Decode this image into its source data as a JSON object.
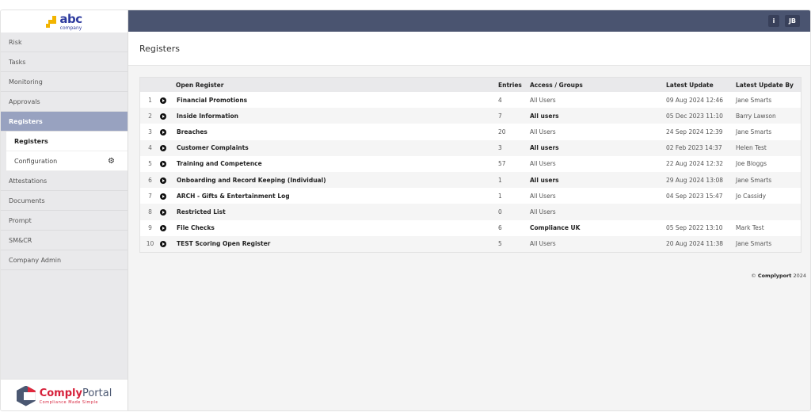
{
  "brand": {
    "logo_text": "abc",
    "logo_sub": "company",
    "footer_logo": "ComplyPortal",
    "footer_tagline": "Compliance Made Simple"
  },
  "sidebar": {
    "items": [
      {
        "label": "Risk"
      },
      {
        "label": "Tasks"
      },
      {
        "label": "Monitoring"
      },
      {
        "label": "Approvals"
      },
      {
        "label": "Registers"
      },
      {
        "label": "Attestations"
      },
      {
        "label": "Documents"
      },
      {
        "label": "Prompt"
      },
      {
        "label": "SM&CR"
      },
      {
        "label": "Company Admin"
      }
    ],
    "sub_items": [
      {
        "label": "Registers"
      },
      {
        "label": "Configuration",
        "icon": "gear-icon"
      }
    ]
  },
  "topbar": {
    "info": "i",
    "user_initials": "JB"
  },
  "page": {
    "title": "Registers"
  },
  "table": {
    "headers": [
      "Open Register",
      "Entries",
      "Access / Groups",
      "Latest Update",
      "Latest Update By"
    ],
    "rows": [
      {
        "n": "1",
        "name": "Financial Promotions",
        "entries": "4",
        "access": "All Users",
        "access_bold": false,
        "update": "09 Aug 2024 12:46",
        "by": "Jane Smarts"
      },
      {
        "n": "2",
        "name": "Inside Information",
        "entries": "7",
        "access": "All users",
        "access_bold": true,
        "update": "05 Dec 2023 11:10",
        "by": "Barry Lawson"
      },
      {
        "n": "3",
        "name": "Breaches",
        "entries": "20",
        "access": "All Users",
        "access_bold": false,
        "update": "24 Sep 2024 12:39",
        "by": "Jane Smarts"
      },
      {
        "n": "4",
        "name": "Customer Complaints",
        "entries": "3",
        "access": "All users",
        "access_bold": true,
        "update": "02 Feb 2023 14:37",
        "by": "Helen Test"
      },
      {
        "n": "5",
        "name": "Training and Competence",
        "entries": "57",
        "access": "All Users",
        "access_bold": false,
        "update": "22 Aug 2024 12:32",
        "by": "Joe Bloggs"
      },
      {
        "n": "6",
        "name": "Onboarding and Record Keeping (Individual)",
        "entries": "1",
        "access": "All users",
        "access_bold": true,
        "update": "29 Aug 2024 13:08",
        "by": "Jane Smarts"
      },
      {
        "n": "7",
        "name": "ARCH - Gifts & Entertainment Log",
        "entries": "1",
        "access": "All Users",
        "access_bold": false,
        "update": "04 Sep 2023 15:47",
        "by": "Jo Cassidy"
      },
      {
        "n": "8",
        "name": "Restricted List",
        "entries": "0",
        "access": "All Users",
        "access_bold": false,
        "update": "",
        "by": ""
      },
      {
        "n": "9",
        "name": "File Checks",
        "entries": "6",
        "access": "Compliance UK",
        "access_bold": true,
        "update": "05 Sep 2022 13:10",
        "by": "Mark Test"
      },
      {
        "n": "10",
        "name": "TEST Scoring Open Register",
        "entries": "5",
        "access": "All Users",
        "access_bold": false,
        "update": "20 Aug 2024 11:38",
        "by": "Jane Smarts"
      }
    ]
  },
  "footer": {
    "copyright": "©",
    "company": "Complyport",
    "year": "2024"
  }
}
